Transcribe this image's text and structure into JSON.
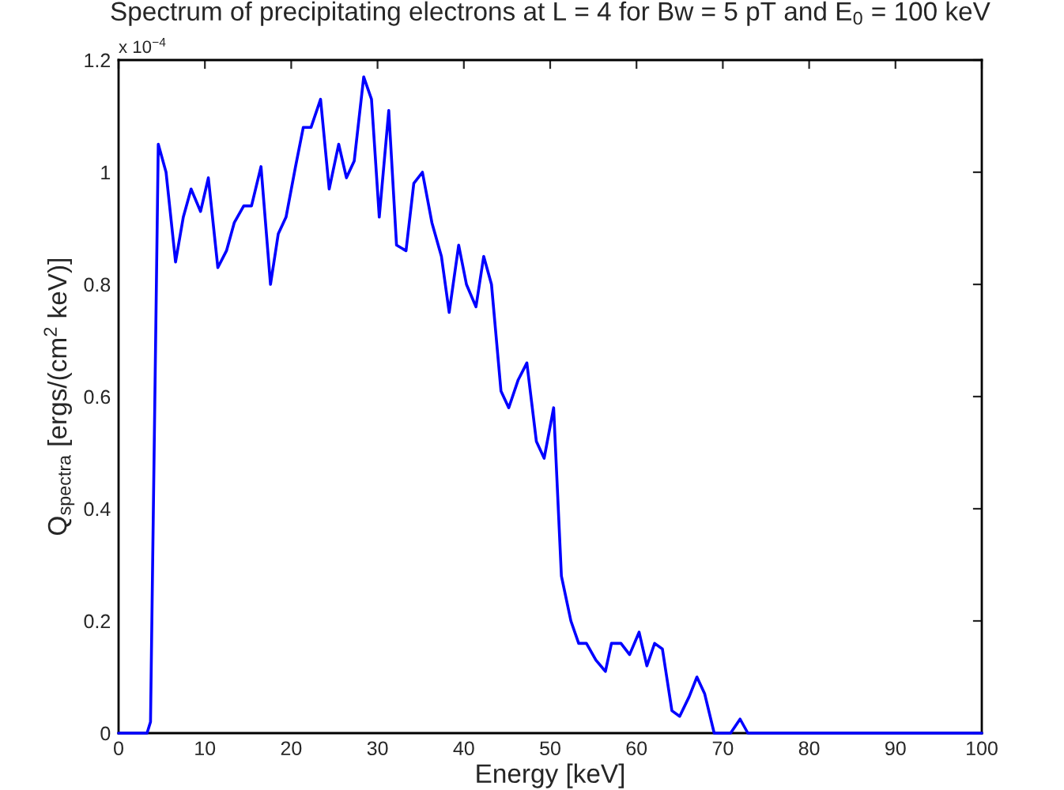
{
  "chart_data": {
    "type": "line",
    "title": "Spectrum of precipitating electrons at L = 4 for Bw = 5 pT and E$_{0}$ = 100 keV",
    "xlabel": "Energy [keV]",
    "ylabel": "Q$_{spectra}$ [ergs/(cm$^{2}$ keV)]",
    "annotations": [
      "x 10$^{−4}$"
    ],
    "x": [
      0,
      1,
      2,
      3.3,
      3.7,
      4.6,
      5.5,
      6.6,
      7.5,
      8.4,
      9.5,
      10.4,
      11.5,
      12.5,
      13.4,
      14.5,
      15.4,
      16.5,
      17.6,
      18.5,
      19.4,
      20.5,
      21.4,
      22.3,
      23.4,
      24.4,
      25.5,
      26.4,
      27.3,
      28.4,
      29.3,
      30.2,
      31.3,
      32.2,
      33.3,
      34.2,
      35.2,
      36.3,
      37.4,
      38.3,
      39.4,
      40.3,
      41.4,
      42.3,
      43.2,
      44.3,
      45.2,
      46.3,
      47.3,
      48.4,
      49.3,
      50.4,
      51.3,
      52.4,
      53.3,
      54.2,
      55.3,
      56.4,
      57.1,
      58.2,
      59.2,
      60.3,
      61.2,
      62.1,
      63.0,
      64.1,
      65.0,
      66.1,
      67.0,
      67.9,
      69.0,
      70.9,
      72.0,
      72.9,
      80,
      90,
      100
    ],
    "series": [
      {
        "color": "#0000ff",
        "values": [
          0,
          0,
          0,
          0,
          0.02,
          1.05,
          1.0,
          0.84,
          0.92,
          0.97,
          0.93,
          0.99,
          0.83,
          0.86,
          0.91,
          0.94,
          0.94,
          1.01,
          0.8,
          0.89,
          0.92,
          1.01,
          1.08,
          1.08,
          1.13,
          0.97,
          1.05,
          0.99,
          1.02,
          1.17,
          1.13,
          0.92,
          1.11,
          0.87,
          0.86,
          0.98,
          1.0,
          0.91,
          0.85,
          0.75,
          0.87,
          0.8,
          0.76,
          0.85,
          0.8,
          0.61,
          0.58,
          0.63,
          0.66,
          0.52,
          0.49,
          0.58,
          0.28,
          0.2,
          0.16,
          0.16,
          0.13,
          0.11,
          0.16,
          0.16,
          0.14,
          0.18,
          0.12,
          0.16,
          0.15,
          0.04,
          0.03,
          0.065,
          0.1,
          0.07,
          0,
          0,
          0.025,
          0,
          0,
          0,
          0
        ]
      }
    ],
    "xlim": [
      0,
      100
    ],
    "xticks": [
      0,
      10,
      20,
      30,
      40,
      50,
      60,
      70,
      80,
      90,
      100
    ],
    "ylim": [
      0,
      1.2
    ],
    "yticks": [
      0,
      0.2,
      0.4,
      0.6,
      0.8,
      1,
      1.2
    ],
    "grid": false,
    "legend": false,
    "marker": "none",
    "line_style": "solid"
  }
}
